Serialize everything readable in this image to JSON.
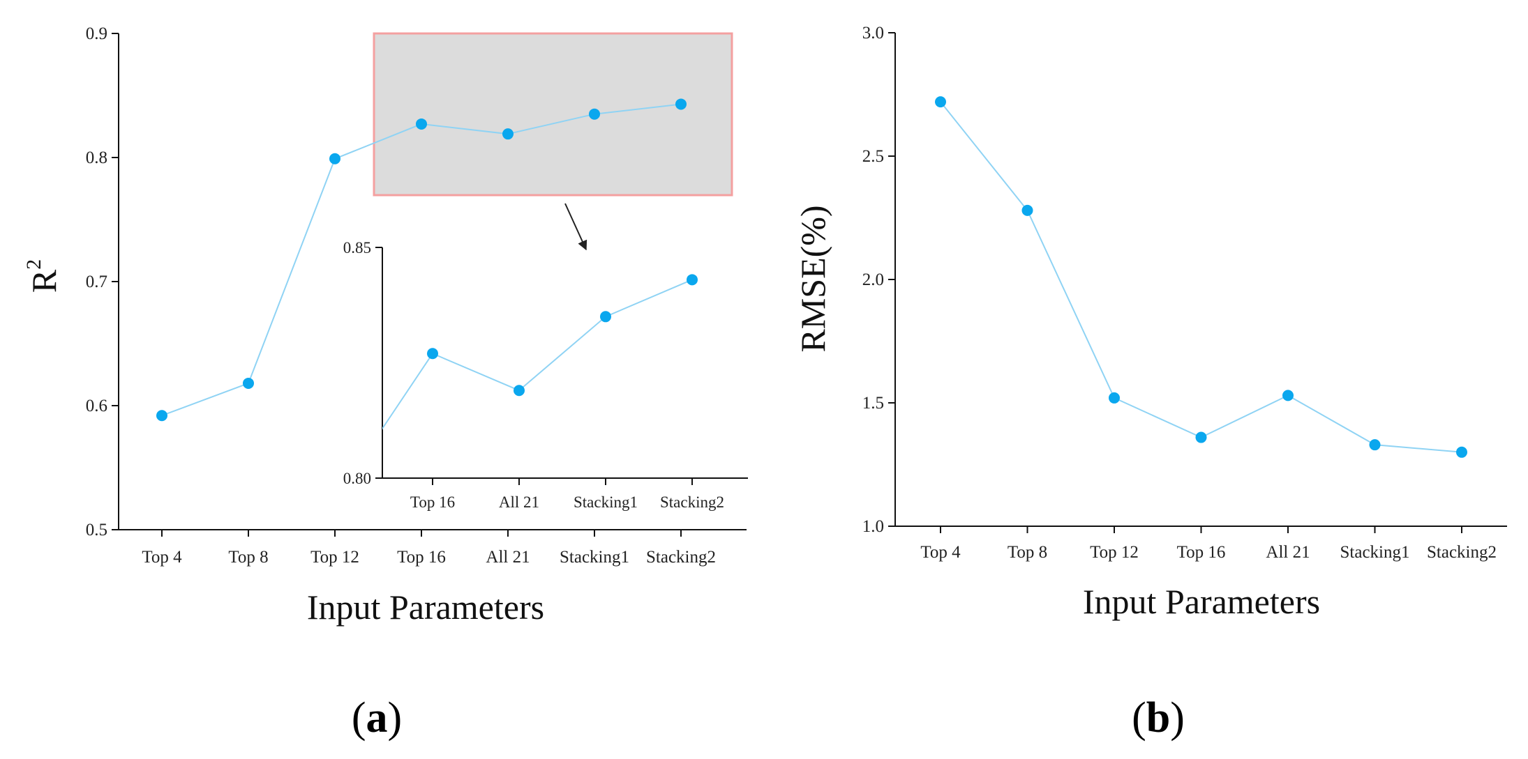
{
  "colors": {
    "line": "#8fd3f4",
    "marker": "#0aa7ee",
    "zoom_fill": "#dcdcdc",
    "zoom_border": "#f4a0a0"
  },
  "chart_data": [
    {
      "type": "line",
      "panel_label": "a",
      "title": "",
      "xlabel": "Input Parameters",
      "ylabel_base": "R",
      "ylabel_sup": "2",
      "categories": [
        "Top 4",
        "Top 8",
        "Top 12",
        "Top 16",
        "All 21",
        "Stacking1",
        "Stacking2"
      ],
      "values": [
        0.592,
        0.618,
        0.799,
        0.827,
        0.819,
        0.835,
        0.843
      ],
      "ylim": [
        0.5,
        0.9
      ],
      "yticks": [
        "0.5",
        "0.6",
        "0.7",
        "0.8",
        "0.9"
      ],
      "grid": false,
      "inset": {
        "categories": [
          "Top 16",
          "All 21",
          "Stacking1",
          "Stacking2"
        ],
        "values": [
          0.827,
          0.819,
          0.835,
          0.843
        ],
        "ylim": [
          0.8,
          0.85
        ],
        "yticks": [
          "0.80",
          "0.85"
        ]
      }
    },
    {
      "type": "line",
      "panel_label": "b",
      "title": "",
      "xlabel": "Input Parameters",
      "ylabel": "RMSE(%)",
      "categories": [
        "Top 4",
        "Top 8",
        "Top 12",
        "Top 16",
        "All 21",
        "Stacking1",
        "Stacking2"
      ],
      "values": [
        2.72,
        2.28,
        1.52,
        1.36,
        1.53,
        1.33,
        1.3
      ],
      "ylim": [
        1.0,
        3.0
      ],
      "yticks": [
        "1.0",
        "1.5",
        "2.0",
        "2.5",
        "3.0"
      ],
      "grid": false
    }
  ]
}
